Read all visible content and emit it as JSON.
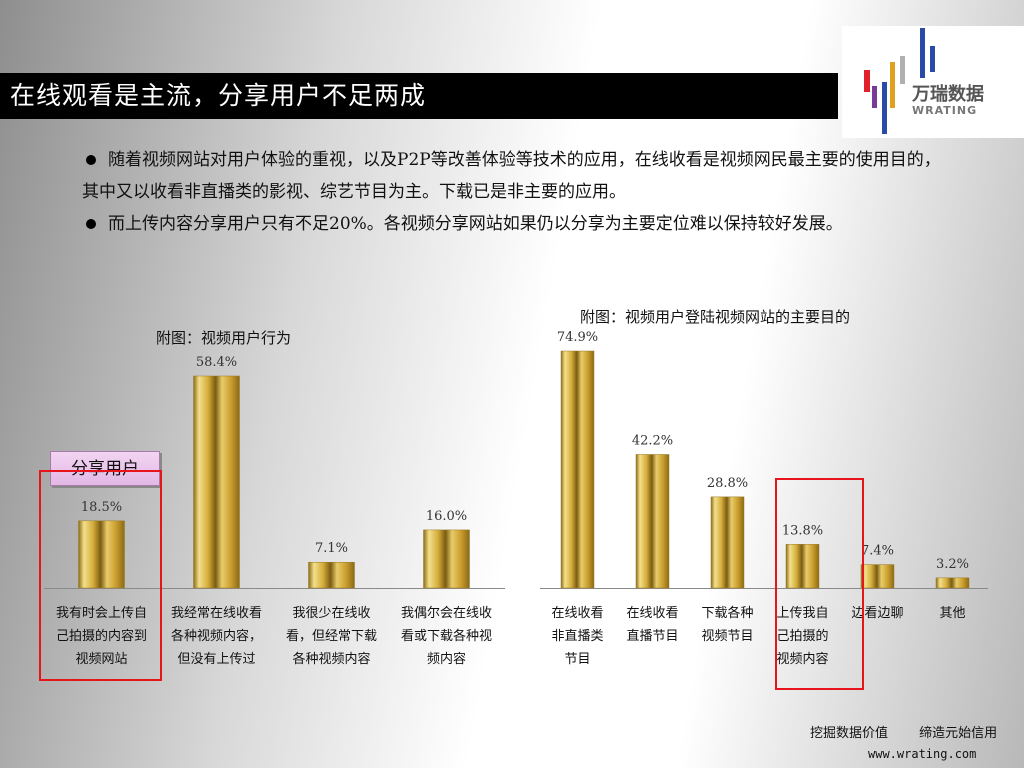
{
  "title": "在线观看是主流，分享用户不足两成",
  "logo": {
    "cn": "万瑞数据",
    "en": "WRATING"
  },
  "bullets": [
    "随着视频网站对用户体验的重视，以及P2P等改善体验等技术的应用，在线收看是视频网民最主要的使用目的，其中又以收看非直播类的影视、综艺节目为主。下载已是非主要的应用。",
    "而上传内容分享用户只有不足20%。各视频分享网站如果仍以分享为主要定位难以保持较好发展。"
  ],
  "share_label": "分享用户",
  "footer": {
    "slogan": "挖掘数据价值　 缔造元始信用",
    "url": "www.wrating.com"
  },
  "colors": {
    "bar_light": "#f3e08c",
    "bar_mid": "#d4ac3a",
    "bar_dark": "#8a6a18",
    "highlight": "#e8141c"
  },
  "chart_data": [
    {
      "type": "bar",
      "title": "附图：视频用户行为",
      "categories": [
        "我有时会上传自己拍摄的内容到视频网站",
        "我经常在线收看各种视频内容，但没有上传过",
        "我很少在线收看，但经常下载各种视频内容",
        "我偶尔会在线收看或下载各种视频内容"
      ],
      "category_lines": [
        [
          "我有时会上传自",
          "己拍摄的内容到",
          "视频网站"
        ],
        [
          "我经常在线收看",
          "各种视频内容，",
          "但没有上传过"
        ],
        [
          "我很少在线收",
          "看，但经常下载",
          "各种视频内容"
        ],
        [
          "我偶尔会在线收",
          "看或下载各种视",
          "频内容"
        ]
      ],
      "values": [
        18.5,
        58.4,
        7.1,
        16.0
      ],
      "value_labels": [
        "18.5%",
        "58.4%",
        "7.1%",
        "16.0%"
      ],
      "highlighted": [
        0
      ],
      "ylim": [
        0,
        65
      ]
    },
    {
      "type": "bar",
      "title": "附图：视频用户登陆视频网站的主要目的",
      "categories": [
        "在线收看非直播类节目",
        "在线收看直播节目",
        "下载各种视频节目",
        "上传我自己拍摄的视频内容",
        "边看边聊",
        "其他"
      ],
      "category_lines": [
        [
          "在线收看",
          "非直播类",
          "节目"
        ],
        [
          "在线收看",
          "直播节目"
        ],
        [
          "下载各种",
          "视频节目"
        ],
        [
          "上传我自",
          "己拍摄的",
          "视频内容"
        ],
        [
          "边看边聊"
        ],
        [
          "其他"
        ]
      ],
      "values": [
        74.9,
        42.2,
        28.8,
        13.8,
        7.4,
        3.2
      ],
      "value_labels": [
        "74.9%",
        "42.2%",
        "28.8%",
        "13.8%",
        "7.4%",
        "3.2%"
      ],
      "highlighted": [
        3
      ],
      "ylim": [
        0,
        80
      ]
    }
  ]
}
